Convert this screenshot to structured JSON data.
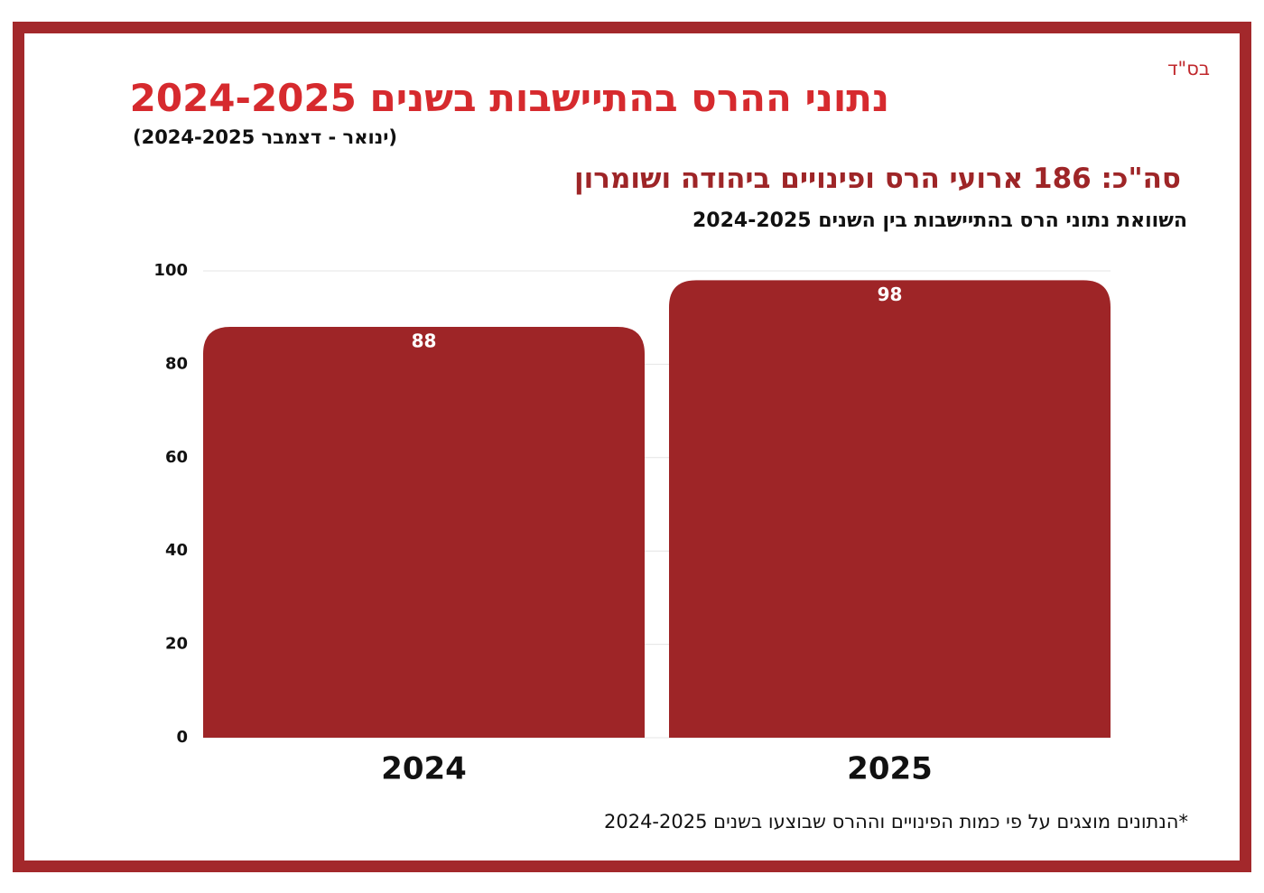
{
  "chart_data": {
    "type": "bar",
    "mark": "בס\"ד",
    "title": "נתוני ההרס בהתיישבות בשנים 2024-2025",
    "subtitle": "(ינואר - דצמבר 2024-2025)",
    "headline": "סה\"כ: 186 ארועי הרס ופינויים ביהודה ושומרון",
    "chart_title": "השוואת נתוני הרס בהתיישבות בין השנים 2024-2025",
    "footnote": "*הנתונים מוצגים על פי כמות הפינויים וההרס שבוצעו בשנים 2024-2025",
    "categories": [
      "2024",
      "2025"
    ],
    "values": [
      88,
      98
    ],
    "color": "#9e2527",
    "ylim": [
      0,
      100
    ],
    "yticks": [
      0,
      20,
      40,
      60,
      80,
      100
    ],
    "grid": true
  }
}
